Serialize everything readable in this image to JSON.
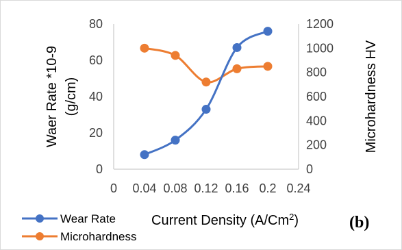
{
  "chart_data": {
    "type": "line",
    "title": "",
    "xlabel": "Current Density (A/Cm",
    "xlabel_sup": "2",
    "xlabel_close": ")",
    "ylabel_line1": "Waer Rate *10-9",
    "ylabel_line2": "(g/cm)",
    "y2label": "Microhardness HV",
    "panel_label": "(b)",
    "x_ticks": [
      "0",
      "0.04",
      "0.08",
      "0.12",
      "0.16",
      "0.2",
      "0.24"
    ],
    "y_ticks": [
      "0",
      "20",
      "40",
      "60",
      "80"
    ],
    "y2_ticks": [
      "0",
      "200",
      "400",
      "600",
      "800",
      "1000",
      "1200"
    ],
    "xlim": [
      0,
      0.24
    ],
    "ylim": [
      0,
      80
    ],
    "y2lim": [
      0,
      1200
    ],
    "legend_position": "bottom-left",
    "series": [
      {
        "name": "Wear Rate",
        "axis": "left",
        "color": "#4472C4",
        "x": [
          0.04,
          0.08,
          0.12,
          0.16,
          0.2
        ],
        "values": [
          8,
          16,
          33,
          67,
          76
        ]
      },
      {
        "name": "Microhardness",
        "axis": "right",
        "color": "#ED7D31",
        "x": [
          0.04,
          0.08,
          0.12,
          0.16,
          0.2
        ],
        "values": [
          1000,
          940,
          720,
          830,
          850
        ]
      }
    ]
  }
}
